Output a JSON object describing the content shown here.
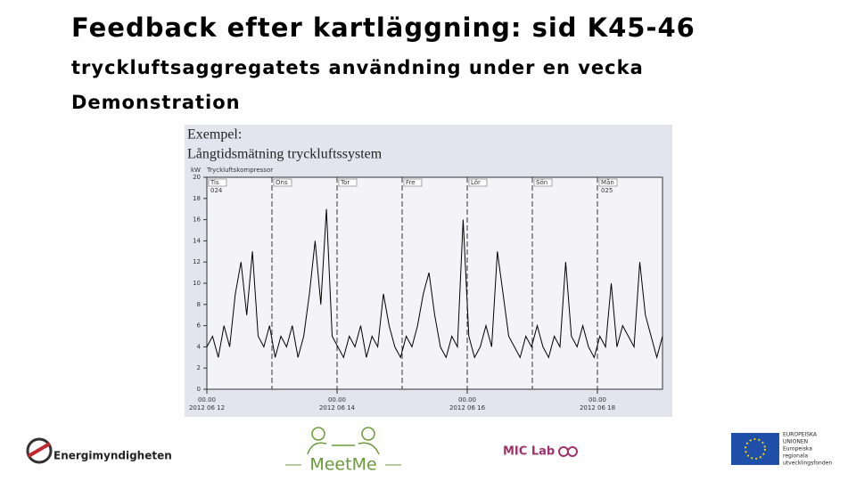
{
  "slide": {
    "title": "Feedback efter kartläggning: sid K45-46",
    "subtitle": "tryckluftsaggregatets användning under en vecka",
    "label": "Demonstration"
  },
  "chart_data": {
    "type": "line",
    "title": "Exempel:",
    "subtitle": "Långtidsmätning tryckluftssystem",
    "unit": "kW",
    "series_name": "Tryckluftskompressor",
    "color": "#000000",
    "ylim": [
      0,
      20
    ],
    "yticks": [
      0,
      2,
      4,
      6,
      8,
      10,
      12,
      14,
      16,
      18,
      20
    ],
    "days": [
      "Tis",
      "Ons",
      "Tor",
      "Fre",
      "Lör",
      "Sön",
      "Mån"
    ],
    "weeks": [
      "024",
      "025"
    ],
    "date_ticks": [
      {
        "time": "00.00",
        "date": "2012 06 12"
      },
      {
        "time": "00.00",
        "date": "2012 06 14"
      },
      {
        "time": "00.00",
        "date": "2012 06 16"
      },
      {
        "time": "00.00",
        "date": "2012 06 18"
      }
    ],
    "values": [
      4,
      5,
      3,
      6,
      4,
      9,
      12,
      7,
      13,
      5,
      4,
      6,
      3,
      5,
      4,
      6,
      3,
      5,
      9,
      14,
      8,
      17,
      5,
      4,
      3,
      5,
      4,
      6,
      3,
      5,
      4,
      9,
      6,
      4,
      3,
      5,
      4,
      6,
      9,
      11,
      7,
      4,
      3,
      5,
      4,
      16,
      5,
      3,
      4,
      6,
      4,
      13,
      9,
      5,
      4,
      3,
      5,
      4,
      6,
      4,
      3,
      5,
      4,
      12,
      5,
      4,
      6,
      4,
      3,
      5,
      4,
      10,
      4,
      6,
      5,
      4,
      12,
      7,
      5,
      3,
      5
    ]
  },
  "logos": {
    "energy": "Energimyndigheten",
    "meetme": "MeetMe",
    "miclab": "MIC Lab",
    "eu": [
      "EUROPEISKA",
      "UNIONEN",
      "Europeiska",
      "regionala",
      "utvecklingsfonden"
    ]
  }
}
